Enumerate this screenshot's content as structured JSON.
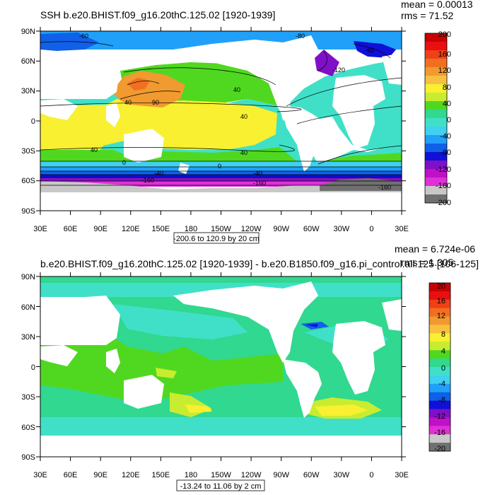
{
  "chart_data": [
    {
      "type": "heatmap",
      "title": "SSH b.e20.BHIST.f09_g16.20thC.125.02 [1920-1939]",
      "stats": {
        "mean": "mean = 0.00013",
        "rms": "rms = 71.52"
      },
      "range_label": "-200.6 to 120.9 by 20 cm",
      "x_ticks": [
        "30E",
        "60E",
        "90E",
        "120E",
        "150E",
        "180",
        "150W",
        "120W",
        "90W",
        "60W",
        "30W",
        "0",
        "30E"
      ],
      "y_ticks": [
        "90N",
        "60N",
        "30N",
        "0",
        "30S",
        "60S",
        "90S"
      ],
      "colorbar": {
        "labels": [
          "200",
          "160",
          "120",
          "80",
          "40",
          "0",
          "-40",
          "-80",
          "-120",
          "-160",
          "-200"
        ],
        "colors": [
          "#c80000",
          "#e81010",
          "#f04018",
          "#f07020",
          "#f09a30",
          "#f8c040",
          "#f8f030",
          "#c8ec30",
          "#50d820",
          "#30d890",
          "#40e0c8",
          "#40d0f0",
          "#20a0f8",
          "#1060e8",
          "#1010d8",
          "#8010c8",
          "#c010c8",
          "#e030d8",
          "#c8c8c8",
          "#707070"
        ]
      },
      "contour_labels": [
        "40",
        "90",
        "40",
        "40",
        "40",
        "0",
        "40",
        "0",
        "-40",
        "-160",
        "-40",
        "-60",
        "-160",
        "-160",
        "-80",
        "-120",
        "-60"
      ]
    },
    {
      "type": "heatmap",
      "title": "b.e20.BHIST.f09_g16.20thC.125.02 [1920-1939] - b.e20.B1850.f09_g16.pi_control.all.125 [106-125]",
      "stats": {
        "mean": "mean = 6.724e-06",
        "rms": "rms = 1.305"
      },
      "range_label": "-13.24 to 11.06 by 2 cm",
      "x_ticks": [
        "30E",
        "60E",
        "90E",
        "120E",
        "150E",
        "180",
        "150W",
        "120W",
        "90W",
        "60W",
        "30W",
        "0",
        "30E"
      ],
      "y_ticks": [
        "90N",
        "60N",
        "30N",
        "0",
        "30S",
        "60S",
        "90S"
      ],
      "colorbar": {
        "labels": [
          "20",
          "16",
          "12",
          "8",
          "4",
          "0",
          "-4",
          "-8",
          "-12",
          "-16",
          "-20"
        ],
        "colors": [
          "#c80000",
          "#e81010",
          "#f04018",
          "#f07020",
          "#f09a30",
          "#f8c040",
          "#f8f030",
          "#c8ec30",
          "#50d820",
          "#30d890",
          "#40e0c8",
          "#40d0f0",
          "#20a0f8",
          "#1060e8",
          "#1010d8",
          "#8010c8",
          "#c010c8",
          "#e030d8",
          "#c8c8c8",
          "#707070"
        ]
      }
    }
  ]
}
